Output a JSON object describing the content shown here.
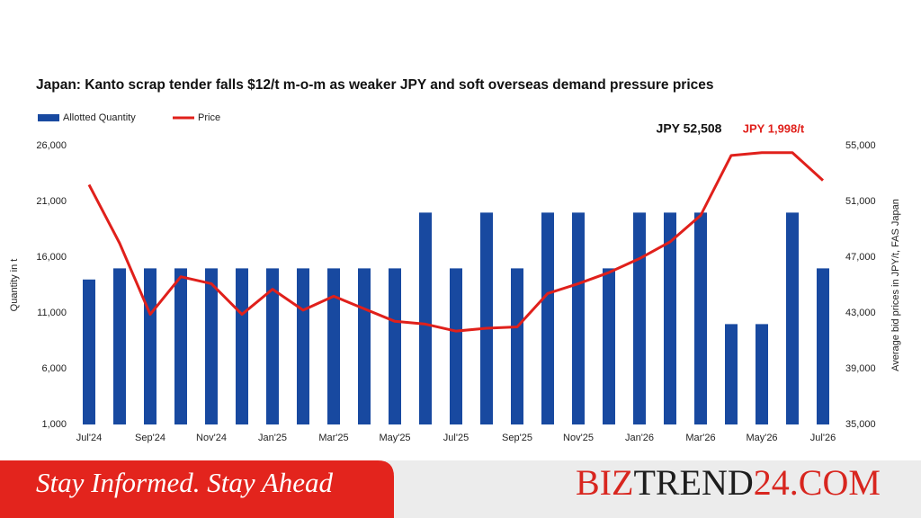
{
  "chart_data": {
    "type": "bar-line",
    "title": "Japan: Kanto scrap tender falls $12/t m-o-m as weaker JPY and soft overseas demand pressure prices",
    "y_label": "Quantity in t",
    "y2_label": "Average bid prices in JPY/t, FAS Japan",
    "categories": [
      "Jul'24",
      null,
      "Sep'24",
      null,
      "Nov'24",
      null,
      "Jan'25",
      null,
      "Mar'25",
      null,
      "May'25",
      null,
      "Jul'25",
      null,
      "Sep'25",
      null,
      "Nov'25",
      null,
      "Jan'26",
      null,
      "Mar'26",
      null,
      "May'26",
      null,
      "Jul'26"
    ],
    "series": [
      {
        "name": "Allotted Quantity",
        "type": "bar",
        "color": "#1849a0",
        "values": [
          14000,
          15000,
          15000,
          15000,
          15000,
          15000,
          15000,
          15000,
          15000,
          15000,
          15000,
          20000,
          15000,
          20000,
          15000,
          20000,
          20000,
          15000,
          20000,
          20000,
          20000,
          10000,
          10000,
          20000,
          15000
        ]
      },
      {
        "name": "Price",
        "type": "line",
        "axis": "y2",
        "color": "#e0201b",
        "values": [
          52200,
          48000,
          42900,
          45600,
          45100,
          42900,
          44700,
          43200,
          44200,
          43300,
          42400,
          42200,
          41700,
          41900,
          42000,
          44400,
          45100,
          45900,
          46900,
          48100,
          50000,
          54300,
          54500,
          54500,
          52508
        ]
      }
    ],
    "ylim": [
      1000,
      26000
    ],
    "yticks": [
      {
        "value": 1000,
        "label": "1,000"
      },
      {
        "value": 6000,
        "label": "6,000"
      },
      {
        "value": 11000,
        "label": "11,000"
      },
      {
        "value": 16000,
        "label": "16,000"
      },
      {
        "value": 21000,
        "label": "21,000"
      },
      {
        "value": 26000,
        "label": "26,000"
      }
    ],
    "y2lim": [
      35000,
      55000
    ],
    "y2ticks": [
      {
        "value": 35000,
        "label": "35,000"
      },
      {
        "value": 39000,
        "label": "39,000"
      },
      {
        "value": 43000,
        "label": "43,000"
      },
      {
        "value": 47000,
        "label": "47,000"
      },
      {
        "value": 51000,
        "label": "51,000"
      },
      {
        "value": 55000,
        "label": "55,000"
      }
    ],
    "annotations": [
      "JPY 52,508",
      "JPY 1,998/t"
    ],
    "legend": "top-left",
    "grid": false
  },
  "footer": {
    "slogan": "Stay Informed. Stay Ahead",
    "brand": [
      "BIZ",
      "TREND",
      "24.COM"
    ]
  }
}
